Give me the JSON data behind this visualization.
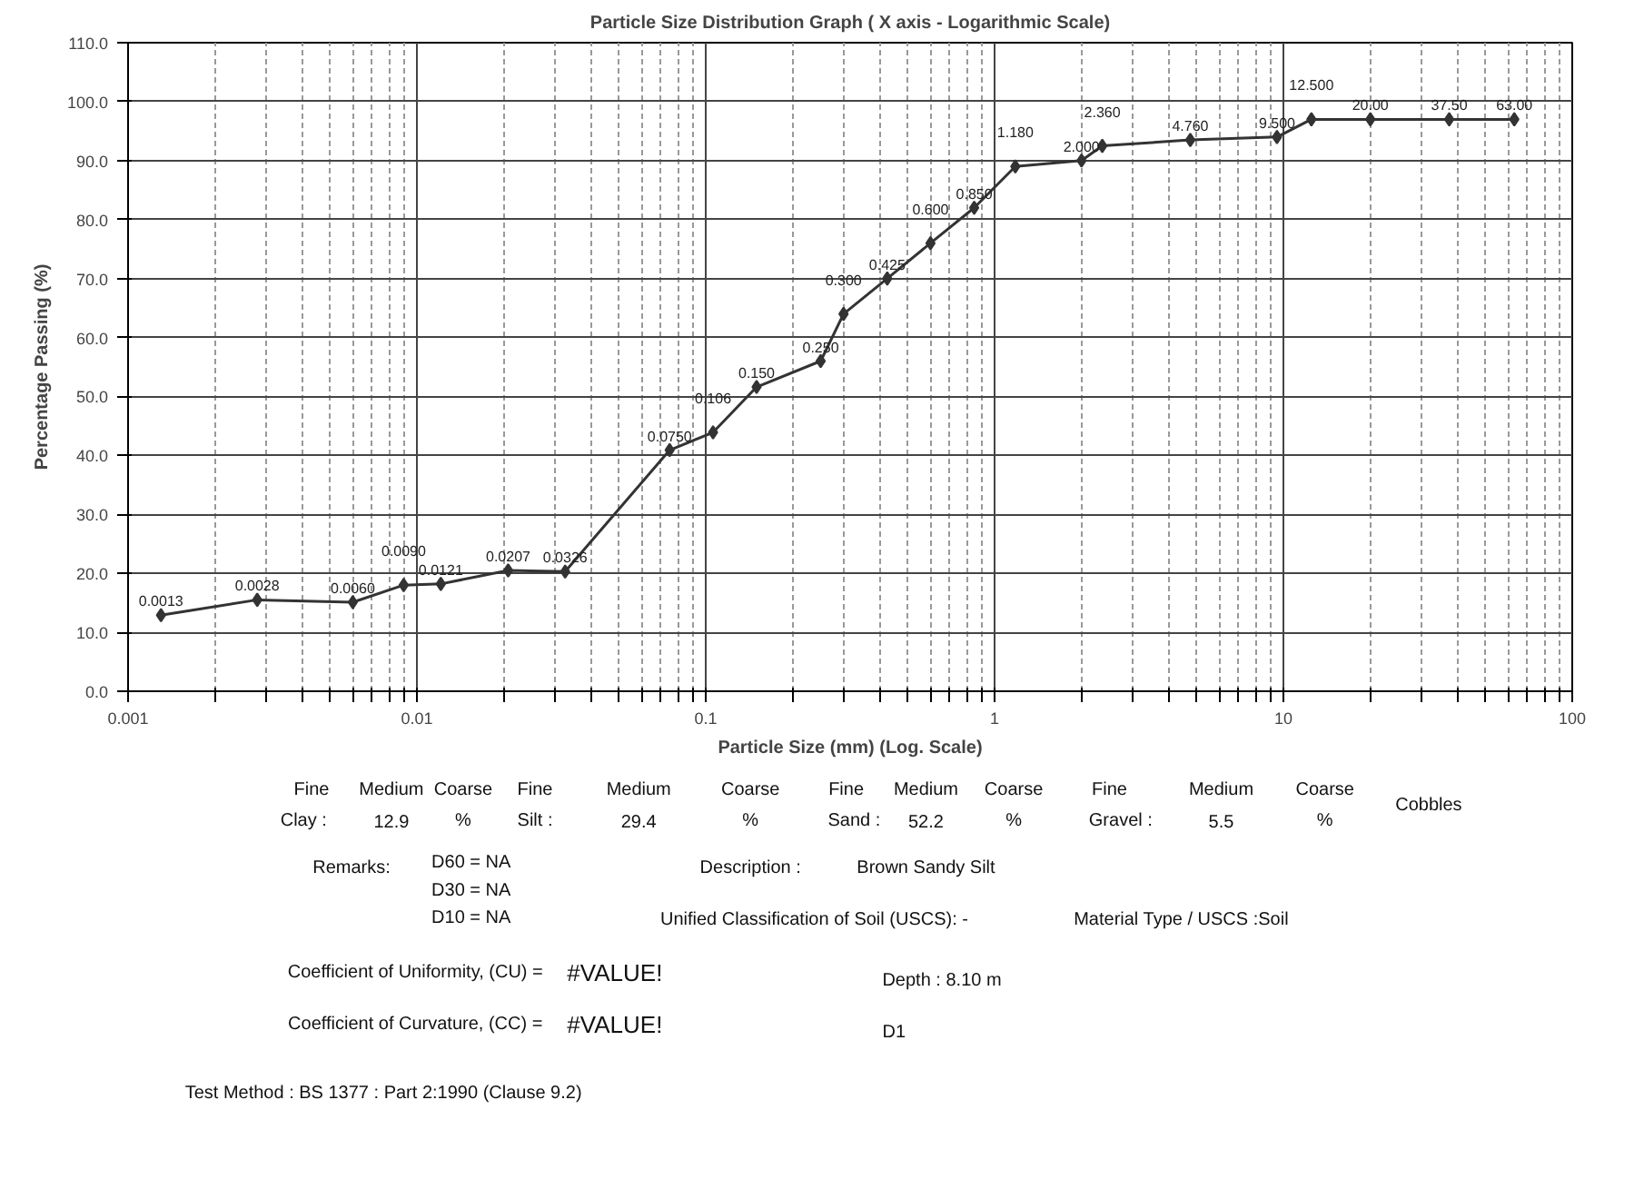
{
  "chart_data": {
    "type": "line",
    "title": "Particle Size Distribution Graph ( X axis - Logarithmic Scale)",
    "xlabel": "Particle Size (mm) (Log. Scale)",
    "ylabel": "Percentage Passing (%)",
    "x": [
      0.0013,
      0.0028,
      0.006,
      0.009,
      0.0121,
      0.0207,
      0.0326,
      0.075,
      0.106,
      0.15,
      0.25,
      0.3,
      0.425,
      0.6,
      0.85,
      1.18,
      2.0,
      2.36,
      4.76,
      9.5,
      12.5,
      20,
      37.5,
      63
    ],
    "series": [
      {
        "color": "#333333",
        "values": [
          12.9,
          15.5,
          15.1,
          18.0,
          18.2,
          20.5,
          20.3,
          40.9,
          43.9,
          51.6,
          56,
          64,
          70,
          76,
          82,
          89,
          90,
          92.5,
          93.5,
          94,
          97,
          97,
          97,
          97
        ]
      }
    ],
    "log": "x",
    "xlim": [
      0.001,
      100
    ],
    "ylim": [
      0,
      110
    ],
    "xticks": [
      0.001,
      {
        "value": 0.002,
        "label": null
      },
      {
        "value": 0.003,
        "label": null
      },
      {
        "value": 0.004,
        "label": null
      },
      {
        "value": 0.005,
        "label": null
      },
      {
        "value": 0.006,
        "label": null
      },
      {
        "value": 0.007,
        "label": null
      },
      {
        "value": 0.008,
        "label": null
      },
      {
        "value": 0.009,
        "label": null
      },
      0.01,
      {
        "value": 0.02,
        "label": null
      },
      {
        "value": 0.03,
        "label": null
      },
      {
        "value": 0.04,
        "label": null
      },
      {
        "value": 0.05,
        "label": null
      },
      {
        "value": 0.06,
        "label": null
      },
      {
        "value": 0.07,
        "label": null
      },
      {
        "value": 0.08,
        "label": null
      },
      {
        "value": 0.09,
        "label": null
      },
      0.1,
      {
        "value": 0.2,
        "label": null
      },
      {
        "value": 0.3,
        "label": null
      },
      {
        "value": 0.4,
        "label": null
      },
      {
        "value": 0.5,
        "label": null
      },
      {
        "value": 0.6,
        "label": null
      },
      {
        "value": 0.7,
        "label": null
      },
      {
        "value": 0.8,
        "label": null
      },
      {
        "value": 0.9,
        "label": null
      },
      1,
      {
        "value": 2,
        "label": null
      },
      {
        "value": 3,
        "label": null
      },
      {
        "value": 4,
        "label": null
      },
      {
        "value": 5,
        "label": null
      },
      {
        "value": 6,
        "label": null
      },
      {
        "value": 7,
        "label": null
      },
      {
        "value": 8,
        "label": null
      },
      {
        "value": 9,
        "label": null
      },
      10,
      {
        "value": 20,
        "label": null
      },
      {
        "value": 30,
        "label": null
      },
      {
        "value": 40,
        "label": null
      },
      {
        "value": 50,
        "label": null
      },
      {
        "value": 60,
        "label": null
      },
      {
        "value": 70,
        "label": null
      },
      {
        "value": 80,
        "label": null
      },
      {
        "value": 90,
        "label": null
      },
      100
    ],
    "yticks": [
      {
        "value": 0,
        "label": "0.0"
      },
      {
        "value": 10,
        "label": "10.0"
      },
      {
        "value": 20,
        "label": "20.0"
      },
      {
        "value": 30,
        "label": "30.0"
      },
      {
        "value": 40,
        "label": "40.0"
      },
      {
        "value": 50,
        "label": "50.0"
      },
      {
        "value": 60,
        "label": "60.0"
      },
      {
        "value": 70,
        "label": "70.0"
      },
      {
        "value": 80,
        "label": "80.0"
      },
      {
        "value": 90,
        "label": "90.0"
      },
      {
        "value": 100,
        "label": "100.0"
      },
      {
        "value": 110,
        "label": "110.0"
      }
    ],
    "grid": true,
    "marker": "diamond",
    "line_style": "solid",
    "annotations": [
      {
        "text": "0.0013",
        "x": 0.0013,
        "y": 12.9
      },
      {
        "text": "0.0028",
        "x": 0.0028,
        "y": 15.5
      },
      {
        "text": "0.0060",
        "x": 0.006,
        "y": 15.1
      },
      {
        "text": "0.0090",
        "x": 0.009,
        "y": 18.0
      },
      {
        "text": "0.0121",
        "x": 0.0121,
        "y": 18.2
      },
      {
        "text": "0.0207",
        "x": 0.0207,
        "y": 20.5
      },
      {
        "text": "0.0326",
        "x": 0.0326,
        "y": 20.3
      },
      {
        "text": "0.0750",
        "x": 0.075,
        "y": 40.9
      },
      {
        "text": "0.106",
        "x": 0.106,
        "y": 43.9
      },
      {
        "text": "0.150",
        "x": 0.15,
        "y": 51.6
      },
      {
        "text": "0.250",
        "x": 0.25,
        "y": 56
      },
      {
        "text": "0.300",
        "x": 0.3,
        "y": 64
      },
      {
        "text": "0.425",
        "x": 0.425,
        "y": 70
      },
      {
        "text": "0.600",
        "x": 0.6,
        "y": 76
      },
      {
        "text": "0.850",
        "x": 0.85,
        "y": 82
      },
      {
        "text": "1.180",
        "x": 1.18,
        "y": 89
      },
      {
        "text": "2.000",
        "x": 2.0,
        "y": 90
      },
      {
        "text": "2.360",
        "x": 2.36,
        "y": 92.5
      },
      {
        "text": "4.760",
        "x": 4.76,
        "y": 93.5
      },
      {
        "text": "9.500",
        "x": 9.5,
        "y": 94
      },
      {
        "text": "12.500",
        "x": 12.5,
        "y": 97
      },
      {
        "text": "20.00",
        "x": 20,
        "y": 97
      },
      {
        "text": "37.50",
        "x": 37.5,
        "y": 97
      },
      {
        "text": "63.00",
        "x": 63,
        "y": 97
      },
      "Fine",
      "Medium",
      "Coarse",
      "Fine",
      "Medium",
      "Coarse",
      "Fine",
      "Medium",
      "Coarse",
      "Fine",
      "Medium",
      "Coarse",
      "Cobbles",
      "Clay :",
      "12.9",
      "%",
      "Silt :",
      "29.4",
      "%",
      "Sand :",
      "52.2",
      "%",
      "Gravel :",
      "5.5",
      "%",
      "Remarks:",
      "D60 = NA",
      "D30 = NA",
      "D10 = NA",
      "Description :",
      "Brown Sandy Silt",
      "Unified Classification of Soil (USCS): -",
      "Material Type / USCS :Soil",
      "Coefficient of Uniformity, (CU) =",
      "#VALUE!",
      "Coefficient of Curvature, (CC) =",
      "#VALUE!",
      "Depth : 8.10 m",
      "D1",
      "Test Method : BS 1377 : Part 2:1990 (Clause 9.2)"
    ]
  }
}
